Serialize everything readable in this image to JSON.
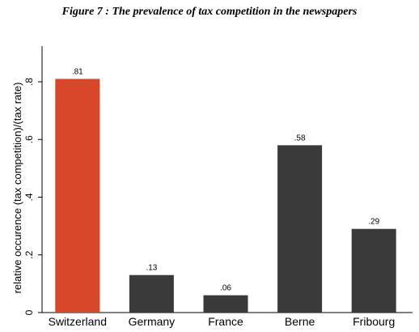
{
  "figure_caption": "Figure 7 : The prevalence of tax competition in the newspapers",
  "chart_data": {
    "type": "bar",
    "title": "",
    "xlabel": "",
    "ylabel": "relative occurence (tax competition)/(tax rate)",
    "categories": [
      "Switzerland",
      "Germany",
      "France",
      "Berne",
      "Fribourg"
    ],
    "values": [
      0.81,
      0.13,
      0.06,
      0.58,
      0.29
    ],
    "data_labels": [
      ".81",
      ".13",
      ".06",
      ".58",
      ".29"
    ],
    "bar_colors": [
      "#d9472b",
      "#3a3a3a",
      "#3a3a3a",
      "#3a3a3a",
      "#3a3a3a"
    ],
    "ylim": [
      0,
      0.9
    ],
    "yticks": [
      0,
      0.2,
      0.4,
      0.6,
      0.8
    ],
    "ytick_labels": [
      "0",
      ".2",
      ".4",
      ".6",
      ".8"
    ],
    "grid": false,
    "legend": "none"
  }
}
